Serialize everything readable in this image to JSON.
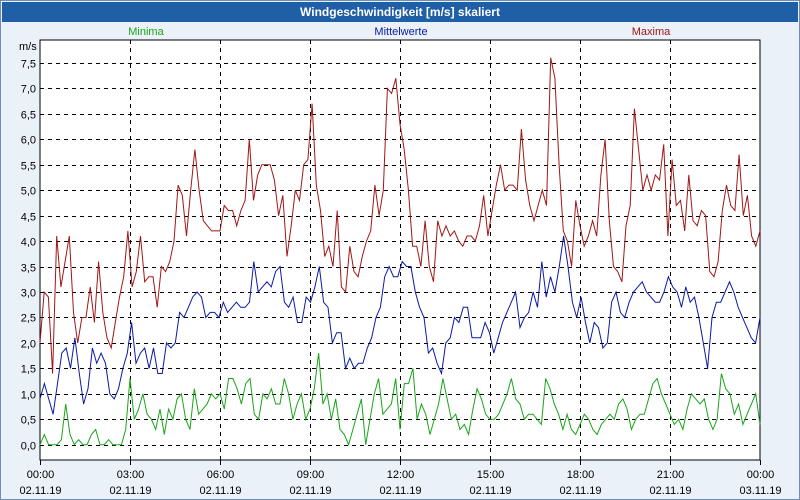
{
  "window": {
    "title": "Windgeschwindigkeit [m/s] skaliert"
  },
  "colors": {
    "minima": "#1aa51a",
    "mittel": "#0a1aa6",
    "maxima": "#a11616",
    "title_bg": "#1f5fa6",
    "grid": "#000000"
  },
  "chart_data": {
    "type": "line",
    "title": "Windgeschwindigkeit [m/s] skaliert",
    "ylabel": "m/s",
    "xlabel": "",
    "ylim": [
      -0.3,
      7.95
    ],
    "xlim": [
      0,
      24
    ],
    "yticks": [
      {
        "v": 0.0,
        "label": "0,0"
      },
      {
        "v": 0.5,
        "label": "0,5"
      },
      {
        "v": 1.0,
        "label": "1,0"
      },
      {
        "v": 1.5,
        "label": "1,5"
      },
      {
        "v": 2.0,
        "label": "2,0"
      },
      {
        "v": 2.5,
        "label": "2,5"
      },
      {
        "v": 3.0,
        "label": "3,0"
      },
      {
        "v": 3.5,
        "label": "3,5"
      },
      {
        "v": 4.0,
        "label": "4,0"
      },
      {
        "v": 4.5,
        "label": "4,5"
      },
      {
        "v": 5.0,
        "label": "5,0"
      },
      {
        "v": 5.5,
        "label": "5,5"
      },
      {
        "v": 6.0,
        "label": "6,0"
      },
      {
        "v": 6.5,
        "label": "6,5"
      },
      {
        "v": 7.0,
        "label": "7,0"
      },
      {
        "v": 7.5,
        "label": "7,5"
      }
    ],
    "xticks": [
      {
        "h": 0,
        "time": "00:00",
        "date": "02.11.19"
      },
      {
        "h": 3,
        "time": "03:00",
        "date": "02.11.19"
      },
      {
        "h": 6,
        "time": "06:00",
        "date": "02.11.19"
      },
      {
        "h": 9,
        "time": "09:00",
        "date": "02.11.19"
      },
      {
        "h": 12,
        "time": "12:00",
        "date": "02.11.19"
      },
      {
        "h": 15,
        "time": "15:00",
        "date": "02.11.19"
      },
      {
        "h": 18,
        "time": "18:00",
        "date": "02.11.19"
      },
      {
        "h": 21,
        "time": "21:00",
        "date": "02.11.19"
      },
      {
        "h": 24,
        "time": "00:00",
        "date": "03.11.19"
      }
    ],
    "x_interval_hours": 0.1667,
    "series": [
      {
        "name": "Maxima",
        "color": "#a11616",
        "values": [
          2.0,
          3.0,
          2.9,
          1.4,
          4.1,
          3.1,
          3.6,
          4.1,
          2.6,
          2.0,
          2.5,
          2.5,
          3.1,
          2.4,
          3.6,
          2.6,
          2.1,
          1.9,
          2.4,
          2.9,
          3.3,
          4.2,
          3.1,
          3.4,
          4.1,
          3.2,
          3.3,
          3.3,
          2.7,
          3.5,
          3.4,
          3.6,
          4.0,
          5.1,
          4.9,
          4.1,
          5.0,
          5.8,
          5.0,
          4.4,
          4.3,
          4.2,
          4.2,
          4.2,
          4.7,
          4.6,
          4.6,
          4.3,
          4.6,
          4.8,
          6.0,
          4.8,
          5.3,
          5.5,
          5.5,
          5.5,
          5.2,
          4.5,
          4.9,
          3.7,
          4.3,
          5.0,
          4.8,
          5.5,
          5.6,
          6.7,
          5.1,
          4.6,
          3.7,
          3.9,
          3.5,
          4.6,
          3.1,
          3.0,
          3.9,
          3.4,
          3.3,
          3.7,
          4.0,
          4.2,
          5.1,
          4.5,
          5.0,
          7.0,
          6.9,
          7.2,
          6.3,
          5.8,
          5.0,
          3.9,
          3.9,
          3.5,
          4.4,
          3.5,
          3.2,
          4.4,
          4.1,
          4.3,
          4.1,
          4.2,
          4.0,
          3.9,
          4.1,
          4.1,
          4.0,
          4.3,
          4.9,
          4.1,
          4.6,
          5.1,
          5.5,
          5.0,
          5.1,
          5.1,
          5.0,
          6.2,
          5.2,
          4.7,
          4.4,
          4.7,
          5.0,
          4.7,
          7.6,
          7.2,
          5.5,
          4.2,
          4.0,
          3.5,
          4.8,
          4.3,
          3.9,
          4.1,
          4.4,
          4.1,
          5.3,
          6.0,
          4.4,
          3.5,
          3.4,
          3.2,
          4.3,
          4.7,
          6.6,
          5.8,
          5.0,
          5.3,
          5.0,
          5.3,
          5.2,
          5.9,
          4.1,
          5.6,
          4.7,
          4.8,
          4.2,
          5.3,
          4.4,
          4.3,
          4.6,
          4.5,
          3.4,
          3.3,
          3.6,
          4.6,
          5.1,
          4.7,
          4.6,
          5.7,
          4.5,
          4.9,
          4.1,
          3.9,
          4.2
        ]
      },
      {
        "name": "Mittelwerte",
        "color": "#0a1aa6",
        "values": [
          0.9,
          1.2,
          0.9,
          0.6,
          1.2,
          1.8,
          1.9,
          1.5,
          2.1,
          1.4,
          0.8,
          1.1,
          1.9,
          1.6,
          1.8,
          1.6,
          1.0,
          0.9,
          1.1,
          1.5,
          1.8,
          2.4,
          1.6,
          1.8,
          1.9,
          1.5,
          1.9,
          1.4,
          1.4,
          2.0,
          1.9,
          2.0,
          2.6,
          2.5,
          2.7,
          2.9,
          3.0,
          2.9,
          2.5,
          2.6,
          2.6,
          2.5,
          2.8,
          2.6,
          2.7,
          2.8,
          2.7,
          2.7,
          2.8,
          3.6,
          3.0,
          3.1,
          3.2,
          3.1,
          3.4,
          3.5,
          2.8,
          2.7,
          2.9,
          2.4,
          2.4,
          2.9,
          2.8,
          3.1,
          3.5,
          2.8,
          2.7,
          2.0,
          2.2,
          2.2,
          1.5,
          1.7,
          1.5,
          1.6,
          1.6,
          1.9,
          2.1,
          2.5,
          2.7,
          3.3,
          3.5,
          3.3,
          3.3,
          3.6,
          3.5,
          3.5,
          3.0,
          2.7,
          2.5,
          1.8,
          1.9,
          1.6,
          1.4,
          2.0,
          2.1,
          2.5,
          2.4,
          2.7,
          2.7,
          2.1,
          2.1,
          2.1,
          2.4,
          2.2,
          1.8,
          2.1,
          2.4,
          2.6,
          2.8,
          3.0,
          2.3,
          2.5,
          2.6,
          3.0,
          2.7,
          3.6,
          2.9,
          3.3,
          3.0,
          3.5,
          4.1,
          3.5,
          2.8,
          2.5,
          2.9,
          2.4,
          2.0,
          2.4,
          2.3,
          1.9,
          2.0,
          2.8,
          3.0,
          2.6,
          2.5,
          2.8,
          3.0,
          3.1,
          3.2,
          3.0,
          2.9,
          2.8,
          2.8,
          3.0,
          3.3,
          3.1,
          3.0,
          2.7,
          3.1,
          2.8,
          2.9,
          2.5,
          2.0,
          1.5,
          2.5,
          2.8,
          2.8,
          3.0,
          3.2,
          3.0,
          2.7,
          2.5,
          2.3,
          2.1,
          2.0,
          2.5
        ]
      },
      {
        "name": "Minima",
        "color": "#1aa51a",
        "values": [
          0.0,
          0.2,
          0.0,
          0.0,
          0.0,
          0.1,
          0.8,
          0.2,
          0.0,
          0.1,
          0.0,
          0.0,
          0.2,
          0.3,
          0.0,
          0.0,
          0.1,
          0.0,
          0.0,
          0.0,
          0.3,
          1.3,
          0.5,
          0.7,
          1.0,
          0.6,
          0.5,
          0.3,
          0.7,
          0.2,
          0.7,
          0.5,
          0.9,
          1.0,
          0.5,
          0.3,
          1.1,
          0.6,
          0.7,
          0.8,
          1.0,
          0.9,
          1.0,
          0.7,
          1.3,
          1.3,
          1.1,
          0.8,
          1.2,
          1.3,
          0.6,
          0.5,
          1.0,
          0.9,
          1.1,
          0.8,
          0.8,
          1.3,
          1.0,
          0.5,
          0.8,
          1.0,
          0.5,
          0.7,
          1.1,
          1.8,
          0.8,
          1.0,
          0.5,
          0.9,
          0.3,
          0.2,
          0.0,
          0.3,
          0.6,
          0.9,
          0.0,
          0.5,
          1.0,
          1.3,
          0.6,
          0.7,
          0.8,
          1.3,
          0.3,
          1.2,
          1.2,
          1.5,
          0.5,
          0.8,
          0.6,
          0.2,
          0.5,
          0.8,
          1.3,
          0.9,
          0.5,
          0.6,
          0.3,
          0.4,
          0.2,
          0.7,
          1.1,
          0.9,
          0.6,
          0.5,
          0.5,
          0.6,
          0.8,
          1.0,
          1.3,
          0.9,
          0.8,
          0.5,
          0.6,
          0.6,
          0.5,
          0.4,
          1.3,
          1.1,
          0.8,
          0.6,
          0.3,
          0.6,
          0.3,
          0.2,
          0.4,
          0.6,
          0.5,
          0.3,
          0.2,
          0.4,
          0.5,
          0.6,
          0.5,
          0.8,
          0.9,
          0.7,
          0.3,
          0.5,
          0.6,
          0.6,
          0.9,
          1.2,
          1.3,
          1.0,
          0.8,
          0.6,
          0.4,
          0.5,
          0.3,
          0.7,
          1.0,
          0.9,
          0.8,
          0.9,
          0.5,
          0.3,
          0.5,
          1.4,
          1.1,
          1.0,
          0.6,
          0.8,
          0.4,
          0.6,
          0.8,
          1.0,
          0.4
        ]
      }
    ],
    "legend": [
      {
        "name": "Minima",
        "color": "#1aa51a",
        "position": "top-left"
      },
      {
        "name": "Mittelwerte",
        "color": "#0a1aa6",
        "position": "top-center"
      },
      {
        "name": "Maxima",
        "color": "#a11616",
        "position": "top-right"
      }
    ]
  }
}
